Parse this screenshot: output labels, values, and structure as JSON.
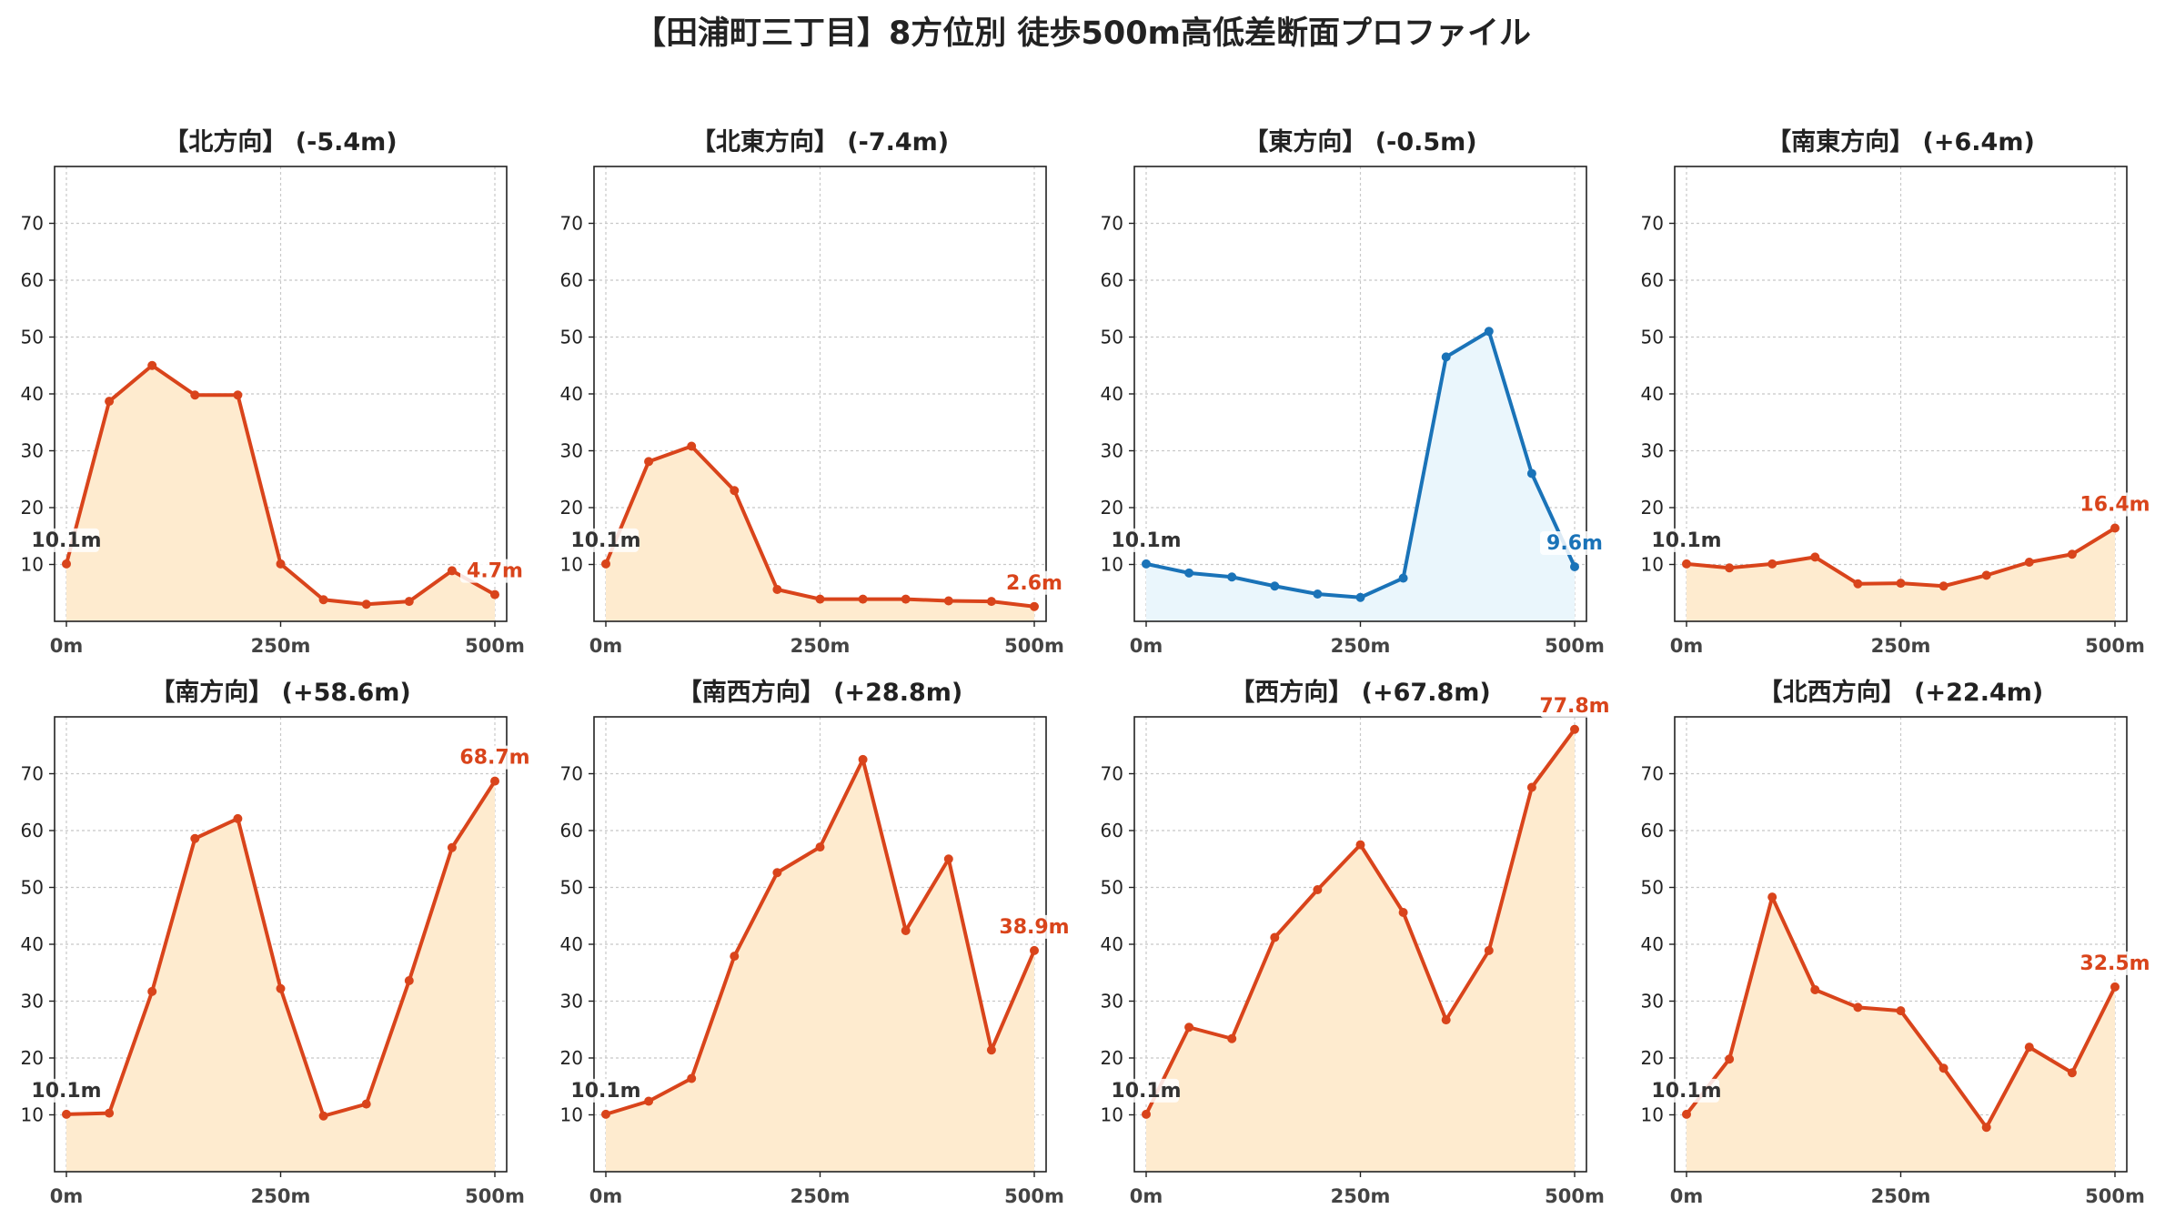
{
  "title": "【田浦町三丁目】8方位別 徒歩500m高低差断面プロファイル",
  "colors": {
    "down": "#d9441b",
    "downFill": "#feebcf",
    "east": "#1a73b8",
    "eastFill": "#eaf6fc",
    "startLabel": "#333333"
  },
  "chart_data": [
    {
      "type": "line",
      "title": "【北方向】 (-5.4m)",
      "color": "down",
      "x": [
        0,
        50,
        100,
        150,
        200,
        250,
        300,
        350,
        400,
        450,
        500
      ],
      "y": [
        10.1,
        38.7,
        45.0,
        39.8,
        39.8,
        10.1,
        3.8,
        3.0,
        3.5,
        8.9,
        4.7
      ],
      "start_label": "10.1m",
      "end_label": "4.7m",
      "xticks": [
        "0m",
        "250m",
        "500m"
      ],
      "yticks": [
        "10",
        "20",
        "30",
        "40",
        "50",
        "60",
        "70"
      ],
      "ylim": [
        0,
        80
      ],
      "grid": true
    },
    {
      "type": "line",
      "title": "【北東方向】 (-7.4m)",
      "color": "down",
      "x": [
        0,
        50,
        100,
        150,
        200,
        250,
        300,
        350,
        400,
        450,
        500
      ],
      "y": [
        10.1,
        28.1,
        30.8,
        23.0,
        5.6,
        3.9,
        3.9,
        3.9,
        3.6,
        3.5,
        2.6
      ],
      "start_label": "10.1m",
      "end_label": "2.6m",
      "xticks": [
        "0m",
        "250m",
        "500m"
      ],
      "yticks": [
        "10",
        "20",
        "30",
        "40",
        "50",
        "60",
        "70"
      ],
      "ylim": [
        0,
        80
      ],
      "grid": true
    },
    {
      "type": "line",
      "title": "【東方向】 (-0.5m)",
      "color": "east",
      "x": [
        0,
        50,
        100,
        150,
        200,
        250,
        300,
        350,
        400,
        450,
        500
      ],
      "y": [
        10.1,
        8.5,
        7.8,
        6.2,
        4.8,
        4.2,
        7.6,
        46.5,
        51.0,
        26.0,
        9.6
      ],
      "start_label": "10.1m",
      "end_label": "9.6m",
      "xticks": [
        "0m",
        "250m",
        "500m"
      ],
      "yticks": [
        "10",
        "20",
        "30",
        "40",
        "50",
        "60",
        "70"
      ],
      "ylim": [
        0,
        80
      ],
      "grid": true
    },
    {
      "type": "line",
      "title": "【南東方向】 (+6.4m)",
      "color": "down",
      "x": [
        0,
        50,
        100,
        150,
        200,
        250,
        300,
        350,
        400,
        450,
        500
      ],
      "y": [
        10.1,
        9.4,
        10.1,
        11.3,
        6.6,
        6.7,
        6.2,
        8.1,
        10.4,
        11.8,
        16.4
      ],
      "start_label": "10.1m",
      "end_label": "16.4m",
      "xticks": [
        "0m",
        "250m",
        "500m"
      ],
      "yticks": [
        "10",
        "20",
        "30",
        "40",
        "50",
        "60",
        "70"
      ],
      "ylim": [
        0,
        80
      ],
      "grid": true
    },
    {
      "type": "line",
      "title": "【南方向】 (+58.6m)",
      "color": "down",
      "x": [
        0,
        50,
        100,
        150,
        200,
        250,
        300,
        350,
        400,
        450,
        500
      ],
      "y": [
        10.1,
        10.3,
        31.7,
        58.6,
        62.1,
        32.2,
        9.8,
        11.9,
        33.6,
        57.0,
        68.7
      ],
      "start_label": "10.1m",
      "end_label": "68.7m",
      "xticks": [
        "0m",
        "250m",
        "500m"
      ],
      "yticks": [
        "10",
        "20",
        "30",
        "40",
        "50",
        "60",
        "70"
      ],
      "ylim": [
        0,
        80
      ],
      "grid": true
    },
    {
      "type": "line",
      "title": "【南西方向】 (+28.8m)",
      "color": "down",
      "x": [
        0,
        50,
        100,
        150,
        200,
        250,
        300,
        350,
        400,
        450,
        500
      ],
      "y": [
        10.1,
        12.4,
        16.4,
        37.9,
        52.6,
        57.1,
        72.5,
        42.4,
        55.0,
        21.4,
        38.9
      ],
      "start_label": "10.1m",
      "end_label": "38.9m",
      "xticks": [
        "0m",
        "250m",
        "500m"
      ],
      "yticks": [
        "10",
        "20",
        "30",
        "40",
        "50",
        "60",
        "70"
      ],
      "ylim": [
        0,
        80
      ],
      "grid": true
    },
    {
      "type": "line",
      "title": "【西方向】 (+67.8m)",
      "color": "down",
      "x": [
        0,
        50,
        100,
        150,
        200,
        250,
        300,
        350,
        400,
        450,
        500
      ],
      "y": [
        10.1,
        25.4,
        23.4,
        41.2,
        49.6,
        57.5,
        45.6,
        26.7,
        38.9,
        67.6,
        77.8
      ],
      "start_label": "10.1m",
      "end_label": "77.8m",
      "xticks": [
        "0m",
        "250m",
        "500m"
      ],
      "yticks": [
        "10",
        "20",
        "30",
        "40",
        "50",
        "60",
        "70"
      ],
      "ylim": [
        0,
        80
      ],
      "grid": true
    },
    {
      "type": "line",
      "title": "【北西方向】 (+22.4m)",
      "color": "down",
      "x": [
        0,
        50,
        100,
        150,
        200,
        250,
        300,
        350,
        400,
        450,
        500
      ],
      "y": [
        10.1,
        19.8,
        48.3,
        32.0,
        28.9,
        28.3,
        18.2,
        7.8,
        21.9,
        17.4,
        32.5
      ],
      "start_label": "10.1m",
      "end_label": "32.5m",
      "xticks": [
        "0m",
        "250m",
        "500m"
      ],
      "yticks": [
        "10",
        "20",
        "30",
        "40",
        "50",
        "60",
        "70"
      ],
      "ylim": [
        0,
        80
      ],
      "grid": true
    }
  ]
}
